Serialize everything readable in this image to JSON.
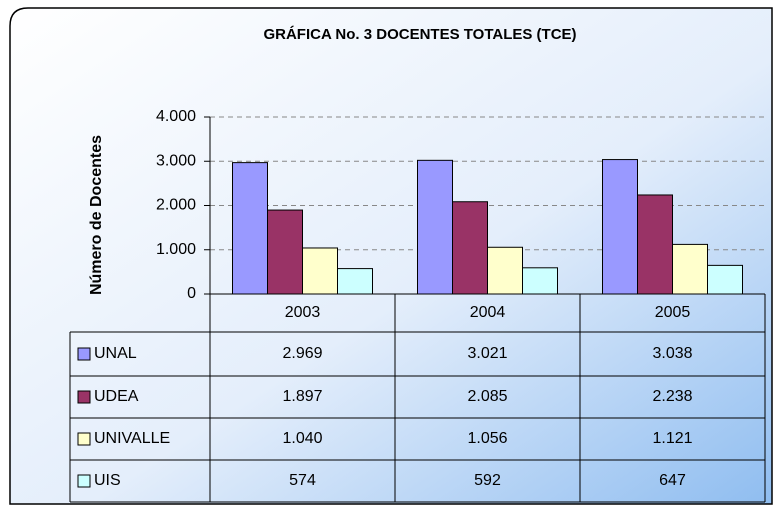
{
  "chart_data": {
    "type": "bar",
    "title": "GRÁFICA No. 3 DOCENTES TOTALES (TCE)",
    "y_label": "Número de  Docentes",
    "categories": [
      "2003",
      "2004",
      "2005"
    ],
    "series": [
      {
        "name": "UNAL",
        "color": "#9999ff",
        "values": [
          2969,
          3021,
          3038
        ],
        "value_labels": [
          "2.969",
          "3.021",
          "3.038"
        ]
      },
      {
        "name": "UDEA",
        "color": "#993366",
        "values": [
          1897,
          2085,
          2238
        ],
        "value_labels": [
          "1.897",
          "2.085",
          "2.238"
        ]
      },
      {
        "name": "UNIVALLE",
        "color": "#ffffcc",
        "values": [
          1040,
          1056,
          1121
        ],
        "value_labels": [
          "1.040",
          "1.056",
          "1.121"
        ]
      },
      {
        "name": "UIS",
        "color": "#ccffff",
        "values": [
          574,
          592,
          647
        ],
        "value_labels": [
          "574",
          "592",
          "647"
        ]
      }
    ],
    "ylim": [
      0,
      4000
    ],
    "yticks": [
      0,
      {
        "value": 1000,
        "label": "1.000"
      },
      {
        "value": 2000,
        "label": "2.000"
      },
      {
        "value": 3000,
        "label": "3.000"
      },
      {
        "value": 4000,
        "label": "4.000"
      }
    ],
    "grid": true
  }
}
